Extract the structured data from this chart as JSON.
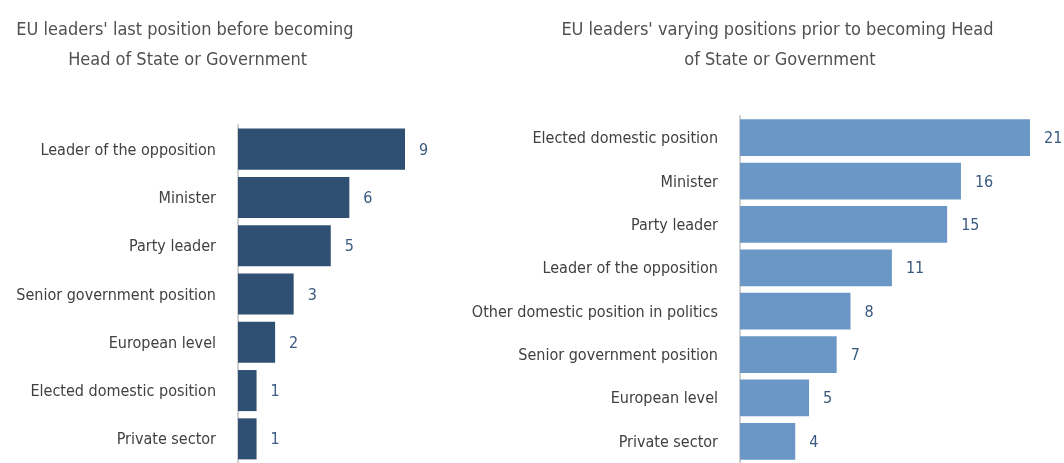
{
  "chart_data": [
    {
      "type": "bar",
      "orientation": "horizontal",
      "title": "EU leaders' last position before becoming Head of State or Government",
      "categories": [
        "Leader of the opposition",
        "Minister",
        "Party leader",
        "Senior government position",
        "European level",
        "Elected domestic position",
        "Private sector"
      ],
      "values": [
        9,
        6,
        5,
        3,
        2,
        1,
        1
      ],
      "color": "#2f4f73",
      "data_labels": true,
      "grid": false
    },
    {
      "type": "bar",
      "orientation": "horizontal",
      "title": "EU leaders' varying positions prior to becoming Head of State or Government",
      "categories": [
        "Elected domestic position",
        "Minister",
        "Party leader",
        "Leader of the opposition",
        "Other domestic position in politics",
        "Senior government position",
        "European level",
        "Private sector"
      ],
      "values": [
        21,
        16,
        15,
        11,
        8,
        7,
        5,
        4
      ],
      "color": "#6a97c5",
      "data_labels": true,
      "grid": false
    }
  ]
}
